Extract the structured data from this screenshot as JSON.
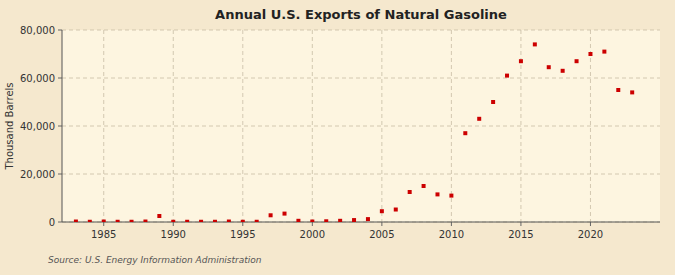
{
  "chart_data": {
    "type": "scatter",
    "title": "Annual U.S. Exports of Natural Gasoline",
    "ylabel": "Thousand Barrels",
    "annotations": [
      "Source: U.S. Energy Information Administration"
    ],
    "x": [
      1983,
      1984,
      1985,
      1986,
      1987,
      1988,
      1989,
      1990,
      1991,
      1992,
      1993,
      1994,
      1995,
      1996,
      1997,
      1998,
      1999,
      2000,
      2001,
      2002,
      2003,
      2004,
      2005,
      2006,
      2007,
      2008,
      2009,
      2010,
      2011,
      2012,
      2013,
      2014,
      2015,
      2016,
      2017,
      2018,
      2019,
      2020,
      2021,
      2022,
      2023
    ],
    "values": [
      200,
      100,
      200,
      100,
      100,
      200,
      2500,
      100,
      100,
      100,
      100,
      200,
      100,
      100,
      2800,
      3500,
      500,
      200,
      300,
      500,
      800,
      1200,
      4500,
      5200,
      12500,
      15000,
      11500,
      11000,
      37000,
      43000,
      50000,
      61000,
      67000,
      74000,
      64500,
      63000,
      67000,
      70000,
      71000,
      55000,
      54000
    ],
    "color": "#cc0000",
    "marker": "square",
    "xlim": [
      1982,
      2025
    ],
    "xticks": [
      1985,
      1990,
      1995,
      2000,
      2005,
      2010,
      2015,
      2020
    ],
    "ylim": [
      0,
      80000
    ],
    "yticks": [
      0,
      {
        "value": 20000,
        "label": "20,000"
      },
      {
        "value": 40000,
        "label": "40,000"
      },
      {
        "value": 60000,
        "label": "60,000"
      },
      {
        "value": 80000,
        "label": "80,000"
      }
    ],
    "grid": true
  }
}
